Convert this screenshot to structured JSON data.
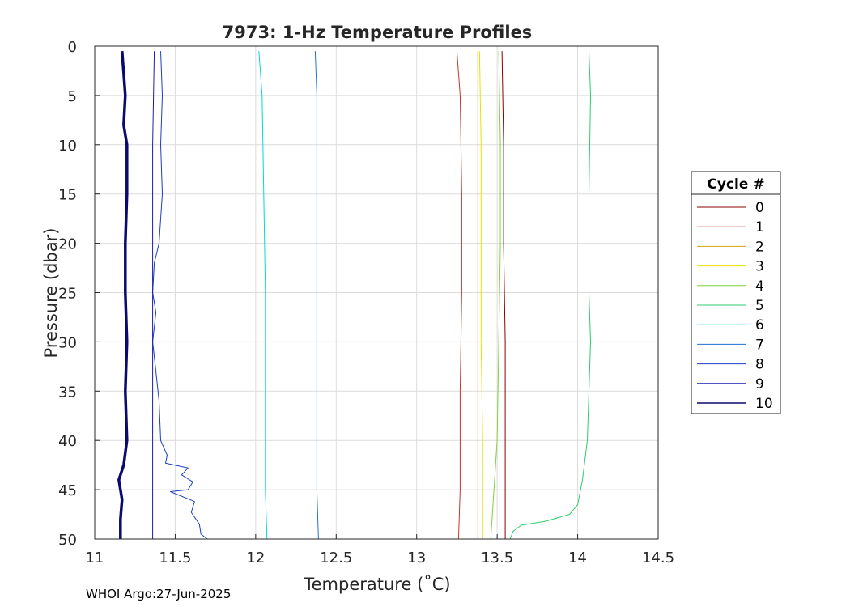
{
  "chart_data": {
    "type": "line",
    "title": "7973: 1-Hz Temperature Profiles",
    "xlabel": "Temperature (˚C)",
    "ylabel": "Pressure (dbar)",
    "xlim": [
      11,
      14.5
    ],
    "ylim": [
      0,
      50
    ],
    "y_reversed": true,
    "x_ticks": [
      "11",
      "11.5",
      "12",
      "12.5",
      "13",
      "13.5",
      "14",
      "14.5"
    ],
    "y_ticks": [
      "0",
      "5",
      "10",
      "15",
      "20",
      "25",
      "30",
      "35",
      "40",
      "45",
      "50"
    ],
    "grid": true,
    "legend_title": "Cycle #",
    "legend_position": "outside-right",
    "series": [
      {
        "name": "0",
        "color": "#8b0000",
        "points": [
          [
            13.53,
            0.5
          ],
          [
            13.54,
            10
          ],
          [
            13.54,
            20
          ],
          [
            13.55,
            30
          ],
          [
            13.55,
            40
          ],
          [
            13.55,
            50
          ]
        ]
      },
      {
        "name": "1",
        "color": "#c0392b",
        "points": [
          [
            13.25,
            0.5
          ],
          [
            13.27,
            5
          ],
          [
            13.28,
            15
          ],
          [
            13.28,
            25
          ],
          [
            13.27,
            35
          ],
          [
            13.27,
            45
          ],
          [
            13.26,
            50
          ]
        ]
      },
      {
        "name": "2",
        "color": "#d4a017",
        "points": [
          [
            13.38,
            0.5
          ],
          [
            13.38,
            10
          ],
          [
            13.38,
            20
          ],
          [
            13.38,
            30
          ],
          [
            13.38,
            40
          ],
          [
            13.38,
            50
          ]
        ]
      },
      {
        "name": "3",
        "color": "#e8e000",
        "points": [
          [
            13.39,
            0.5
          ],
          [
            13.4,
            10
          ],
          [
            13.4,
            20
          ],
          [
            13.4,
            30
          ],
          [
            13.41,
            40
          ],
          [
            13.41,
            50
          ]
        ]
      },
      {
        "name": "4",
        "color": "#7fd13b",
        "points": [
          [
            13.51,
            0.5
          ],
          [
            13.52,
            10
          ],
          [
            13.52,
            20
          ],
          [
            13.51,
            30
          ],
          [
            13.5,
            40
          ],
          [
            13.48,
            45
          ],
          [
            13.46,
            50
          ]
        ]
      },
      {
        "name": "5",
        "color": "#2ecc71",
        "points": [
          [
            14.07,
            0.5
          ],
          [
            14.08,
            5
          ],
          [
            14.07,
            15
          ],
          [
            14.07,
            25
          ],
          [
            14.08,
            30
          ],
          [
            14.07,
            35
          ],
          [
            14.06,
            40
          ],
          [
            14.03,
            44
          ],
          [
            14.0,
            46.5
          ],
          [
            13.95,
            47.5
          ],
          [
            13.8,
            48.2
          ],
          [
            13.65,
            48.6
          ],
          [
            13.6,
            49.2
          ],
          [
            13.58,
            50
          ]
        ]
      },
      {
        "name": "6",
        "color": "#00d8d8",
        "points": [
          [
            12.02,
            0.5
          ],
          [
            12.04,
            5
          ],
          [
            12.05,
            15
          ],
          [
            12.06,
            25
          ],
          [
            12.06,
            35
          ],
          [
            12.06,
            45
          ],
          [
            12.07,
            50
          ]
        ]
      },
      {
        "name": "7",
        "color": "#1f6fd1",
        "points": [
          [
            12.37,
            0.5
          ],
          [
            12.38,
            5
          ],
          [
            12.38,
            15
          ],
          [
            12.38,
            25
          ],
          [
            12.38,
            35
          ],
          [
            12.38,
            45
          ],
          [
            12.39,
            50
          ]
        ]
      },
      {
        "name": "8",
        "color": "#1a3fc4",
        "points": [
          [
            11.41,
            0.5
          ],
          [
            11.42,
            5
          ],
          [
            11.41,
            10
          ],
          [
            11.42,
            15
          ],
          [
            11.4,
            20
          ],
          [
            11.37,
            22
          ],
          [
            11.36,
            25
          ],
          [
            11.38,
            27
          ],
          [
            11.36,
            30
          ],
          [
            11.38,
            33
          ],
          [
            11.4,
            36
          ],
          [
            11.41,
            40
          ],
          [
            11.45,
            41.5
          ],
          [
            11.44,
            42.3
          ],
          [
            11.58,
            42.8
          ],
          [
            11.54,
            43.5
          ],
          [
            11.61,
            44.2
          ],
          [
            11.58,
            45
          ],
          [
            11.47,
            45.2
          ],
          [
            11.62,
            46.2
          ],
          [
            11.6,
            47.3
          ],
          [
            11.65,
            48.5
          ],
          [
            11.66,
            49.5
          ],
          [
            11.7,
            50
          ]
        ]
      },
      {
        "name": "9",
        "color": "#1b1bb0",
        "points": [
          [
            11.37,
            0.5
          ],
          [
            11.36,
            10
          ],
          [
            11.36,
            20
          ],
          [
            11.36,
            30
          ],
          [
            11.36,
            40
          ],
          [
            11.36,
            50
          ]
        ]
      },
      {
        "name": "10",
        "color": "#0a0a6e",
        "points": [
          [
            11.17,
            0.5
          ],
          [
            11.19,
            5
          ],
          [
            11.18,
            8
          ],
          [
            11.2,
            10
          ],
          [
            11.2,
            15
          ],
          [
            11.19,
            20
          ],
          [
            11.19,
            25
          ],
          [
            11.2,
            30
          ],
          [
            11.19,
            35
          ],
          [
            11.2,
            40
          ],
          [
            11.18,
            42.5
          ],
          [
            11.15,
            44
          ],
          [
            11.17,
            46
          ],
          [
            11.16,
            48
          ],
          [
            11.16,
            50
          ]
        ]
      }
    ]
  },
  "footer_text": "WHOI Argo:27-Jun-2025"
}
